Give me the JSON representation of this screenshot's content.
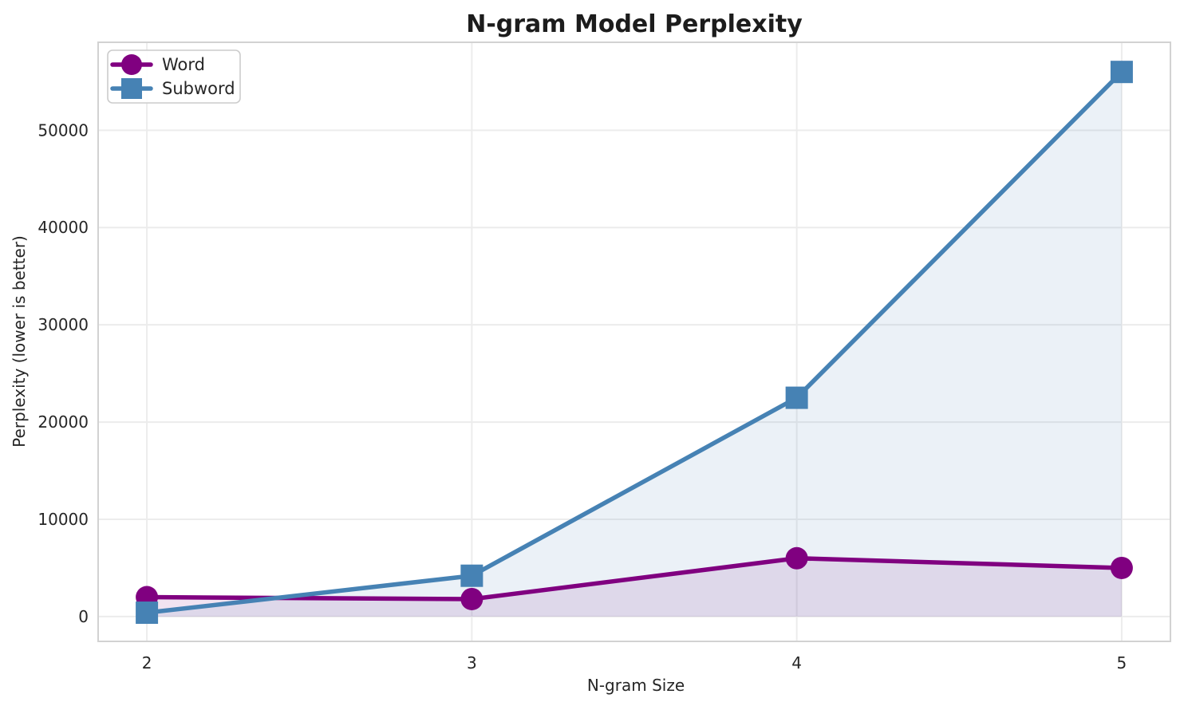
{
  "chart_data": {
    "type": "line",
    "title": "N-gram Model Perplexity",
    "xlabel": "N-gram Size",
    "ylabel": "Perplexity (lower is better)",
    "x": [
      2,
      3,
      4,
      5
    ],
    "series": [
      {
        "name": "Word",
        "values": [
          2000,
          1800,
          6000,
          5000
        ],
        "color": "#800080",
        "marker": "circle"
      },
      {
        "name": "Subword",
        "values": [
          400,
          4200,
          22500,
          56000
        ],
        "color": "#4682b4",
        "marker": "square"
      }
    ],
    "xticks": [
      2,
      3,
      4,
      5
    ],
    "yticks": [
      0,
      10000,
      20000,
      30000,
      40000,
      50000
    ],
    "xlim": [
      1.85,
      5.15
    ],
    "ylim": [
      -2550,
      59050
    ],
    "grid": true,
    "legend_position": "upper left",
    "fill_to_zero": true,
    "fill_alpha": 0.11,
    "colors": {
      "grid": "#ececec",
      "spine": "#d2d2d2",
      "text": "#262626",
      "legend_border": "#cccccc",
      "background": "#ffffff"
    }
  }
}
